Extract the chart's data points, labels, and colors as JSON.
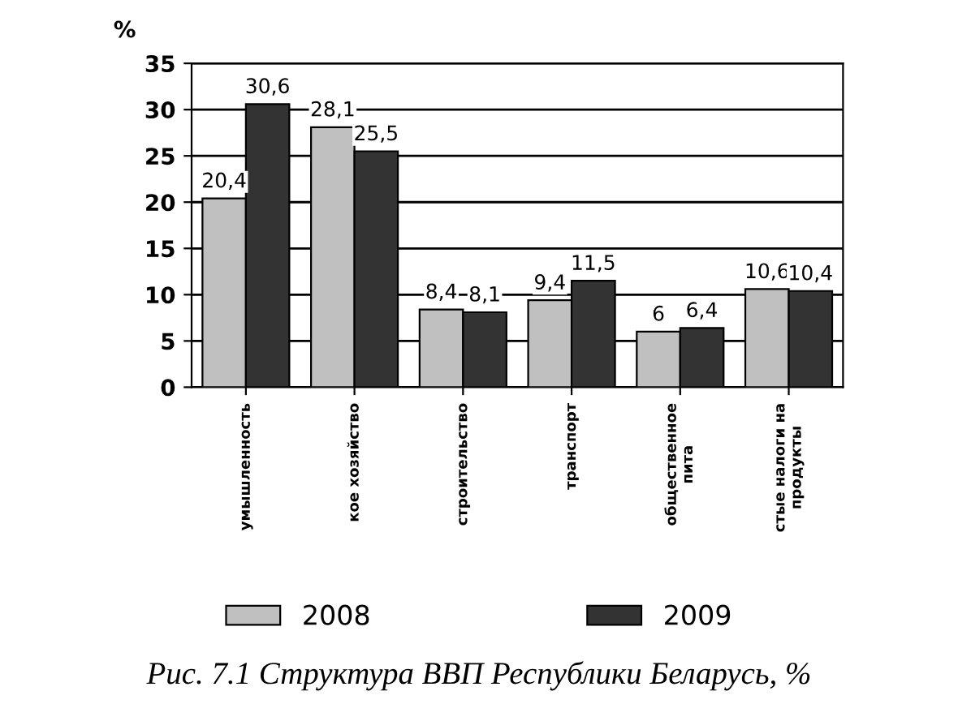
{
  "chart_data": {
    "type": "bar",
    "ylabel": "%",
    "categories": [
      "умышленность",
      "кое хозяйство",
      "строительство",
      "транспорт",
      "общественное\nпита",
      "стые налоги на\nпродукты"
    ],
    "series": [
      {
        "name": "2008",
        "color": "#c0c0c0",
        "values": [
          20.4,
          28.1,
          8.4,
          9.4,
          6,
          10.6
        ],
        "value_labels": [
          "20,4",
          "28,1",
          "8,4",
          "9,4",
          "6",
          "10,6"
        ]
      },
      {
        "name": "2009",
        "color": "#333333",
        "values": [
          30.6,
          25.5,
          8.1,
          11.5,
          6.4,
          10.4
        ],
        "value_labels": [
          "30,6",
          "25,5",
          "8,1",
          "11,5",
          "6,4",
          "10,4"
        ]
      }
    ],
    "ylim": [
      0,
      35
    ],
    "yticks": [
      0,
      5,
      10,
      15,
      20,
      25,
      30,
      35
    ],
    "grid": "y",
    "legend": "bottom",
    "annotations": [
      "Рис. 7.1 Структура ВВП Республики Беларусь, %"
    ]
  }
}
